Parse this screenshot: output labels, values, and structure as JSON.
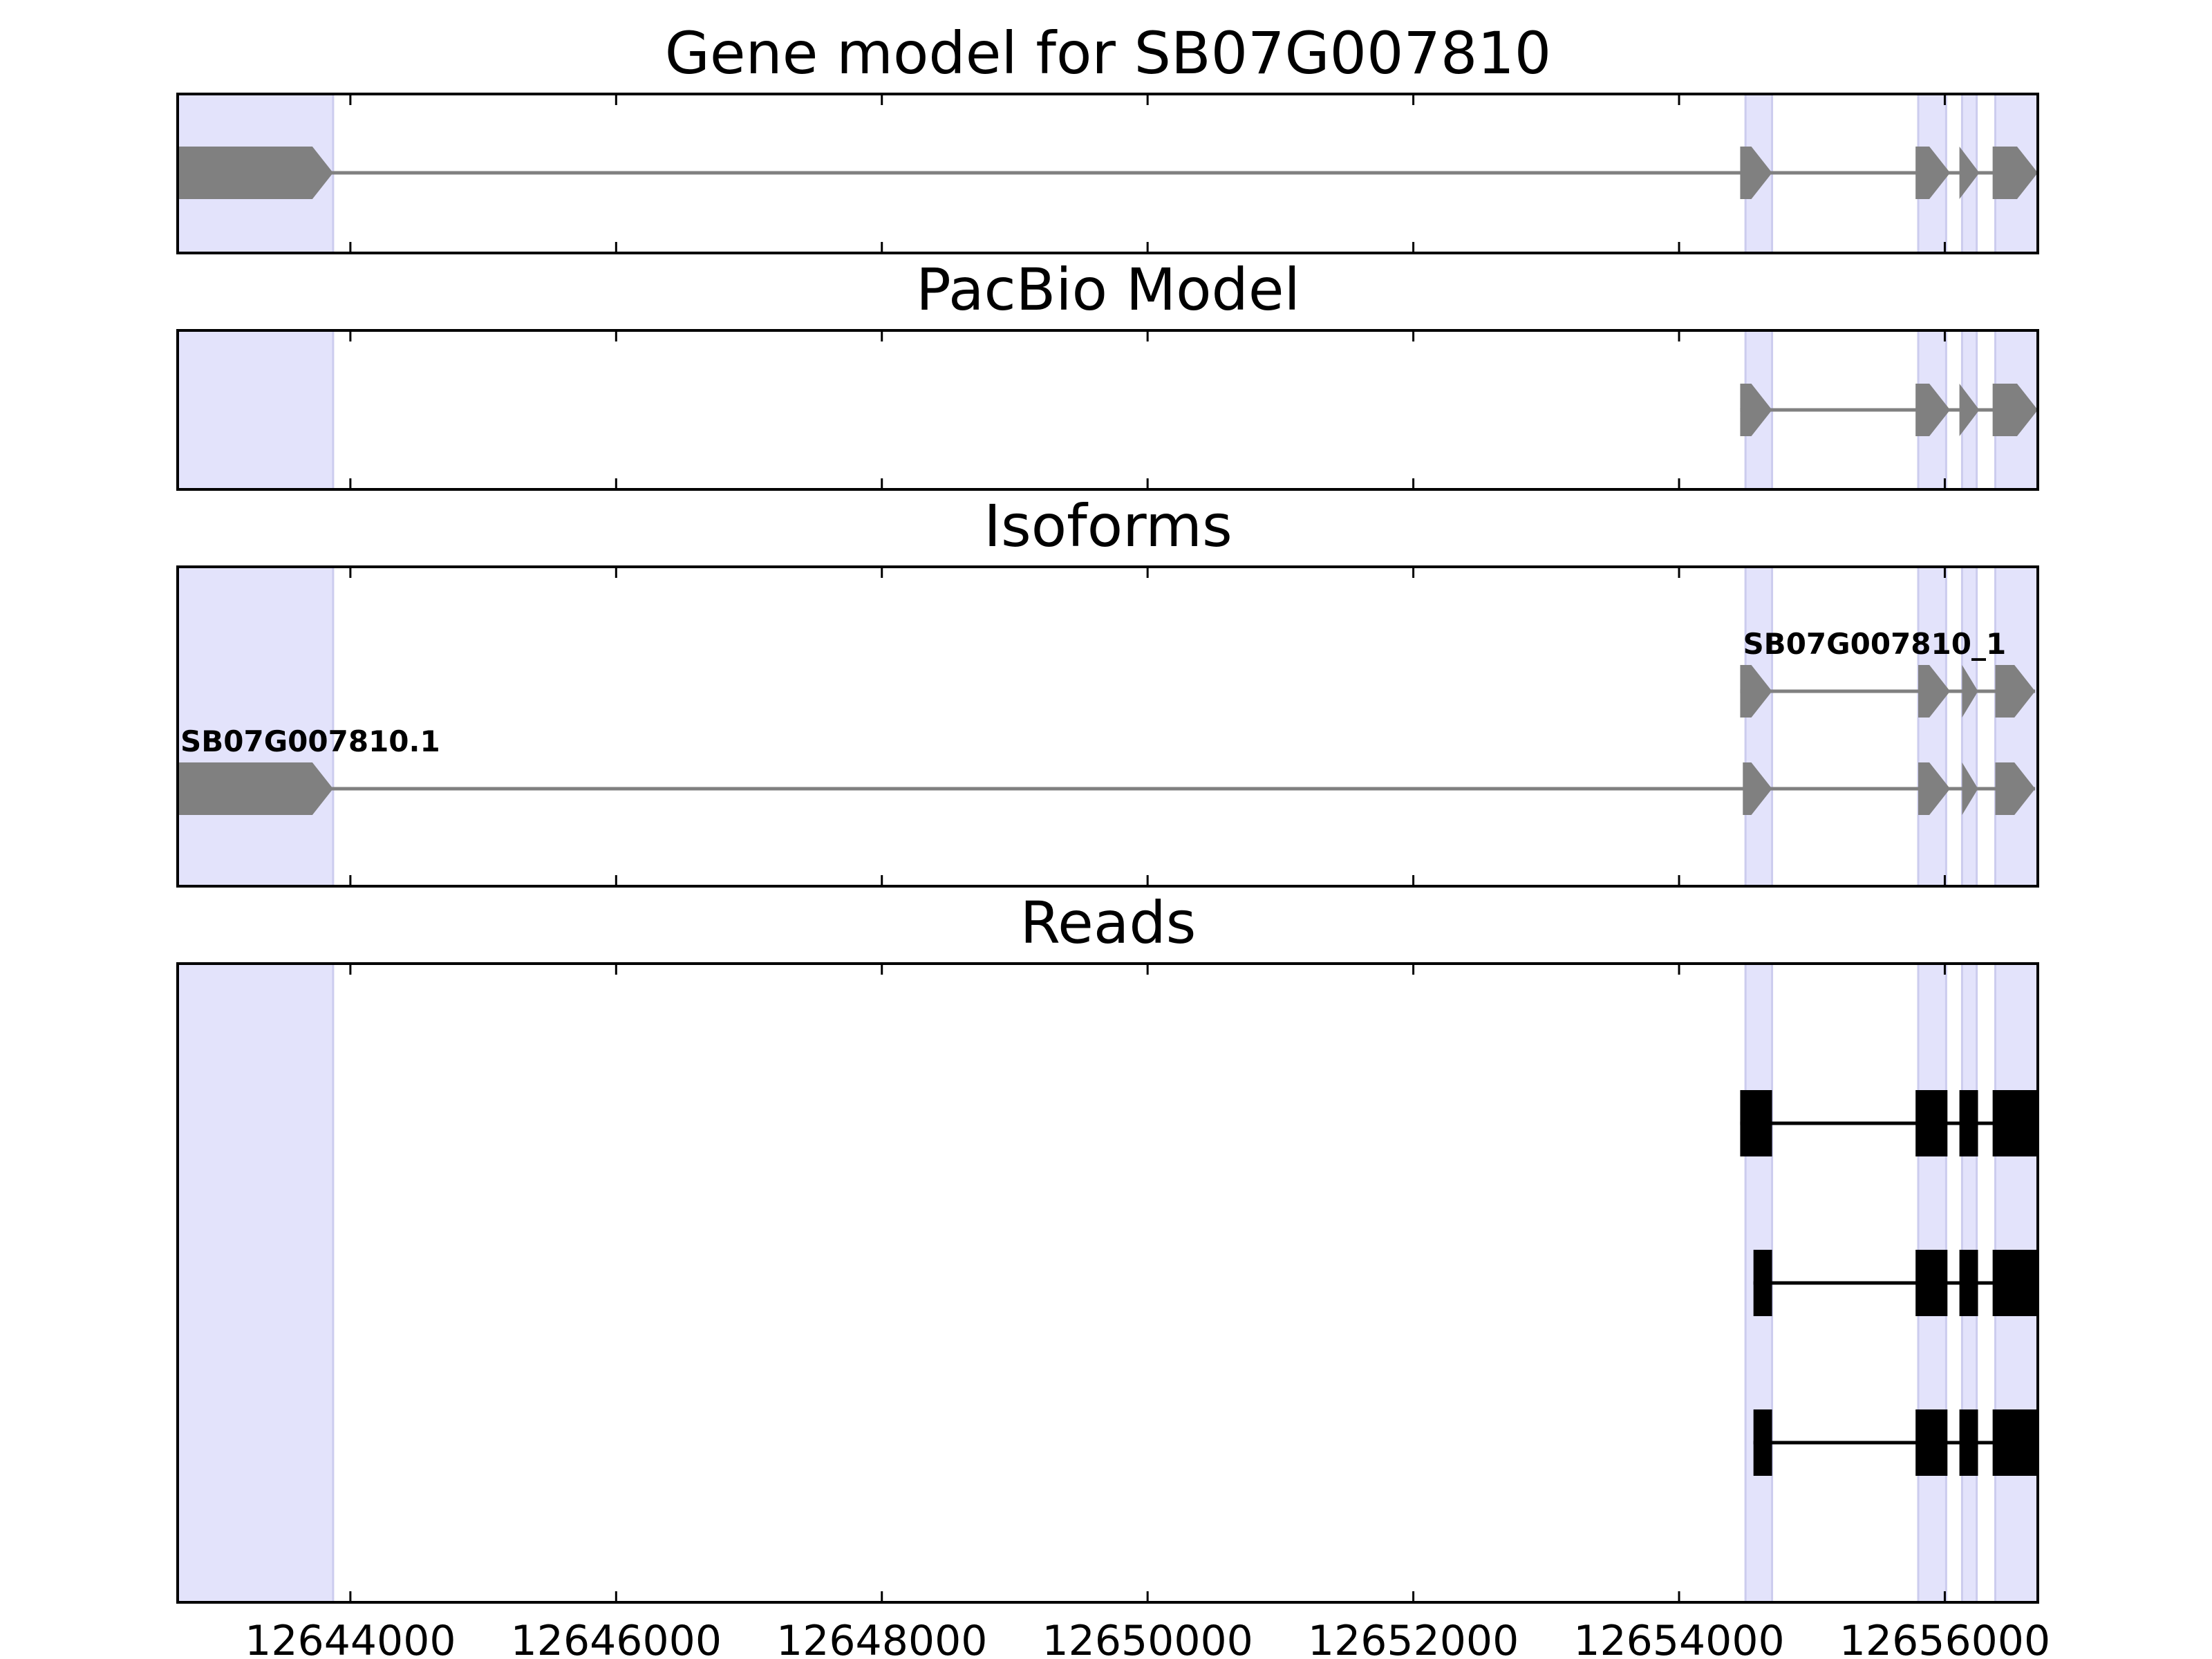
{
  "chart_data": {
    "type": "gene-track",
    "xlim": [
      12642700,
      12656700
    ],
    "x_ticks": [
      {
        "value": 12644000,
        "label": "12644000"
      },
      {
        "value": 12646000,
        "label": "12646000"
      },
      {
        "value": 12648000,
        "label": "12648000"
      },
      {
        "value": 12650000,
        "label": "12650000"
      },
      {
        "value": 12652000,
        "label": "12652000"
      },
      {
        "value": 12654000,
        "label": "12654000"
      },
      {
        "value": 12656000,
        "label": "12656000"
      }
    ],
    "colors": {
      "highlight": "#e3e3fb",
      "highlight_edge": "#ccccee",
      "model": "#808080",
      "read": "#000000",
      "axis": "#000000"
    },
    "highlight_regions": [
      [
        12642700,
        12643870
      ],
      [
        12654500,
        12654700
      ],
      [
        12655800,
        12656010
      ],
      [
        12656130,
        12656240
      ],
      [
        12656380,
        12656700
      ]
    ],
    "panels": [
      {
        "id": "gene-model",
        "title": "Gene model for SB07G007810",
        "kind": "model",
        "tracks": [
          {
            "label": "",
            "exons": [
              [
                12642700,
                12643870
              ],
              [
                12654460,
                12654700
              ],
              [
                12655780,
                12656040
              ],
              [
                12656110,
                12656260
              ],
              [
                12656360,
                12656700
              ]
            ]
          }
        ]
      },
      {
        "id": "pacbio-model",
        "title": "PacBio Model",
        "kind": "model",
        "tracks": [
          {
            "label": "",
            "exons": [
              [
                12654460,
                12654700
              ],
              [
                12655780,
                12656040
              ],
              [
                12656110,
                12656260
              ],
              [
                12656360,
                12656700
              ]
            ]
          }
        ]
      },
      {
        "id": "isoforms",
        "title": "Isoforms",
        "kind": "model",
        "tracks": [
          {
            "label": "SB07G007810_1",
            "exons": [
              [
                12654460,
                12654700
              ],
              [
                12655800,
                12656040
              ],
              [
                12656130,
                12656250
              ],
              [
                12656380,
                12656680
              ]
            ]
          },
          {
            "label": "SB07G007810.1",
            "exons": [
              [
                12642700,
                12643870
              ],
              [
                12654480,
                12654700
              ],
              [
                12655800,
                12656040
              ],
              [
                12656130,
                12656250
              ],
              [
                12656380,
                12656680
              ]
            ]
          }
        ]
      },
      {
        "id": "reads",
        "title": "Reads",
        "kind": "reads",
        "tracks": [
          {
            "label": "",
            "exons": [
              [
                12654460,
                12654700
              ],
              [
                12655780,
                12656020
              ],
              [
                12656110,
                12656250
              ],
              [
                12656360,
                12656690
              ]
            ]
          },
          {
            "label": "",
            "exons": [
              [
                12654560,
                12654700
              ],
              [
                12655780,
                12656020
              ],
              [
                12656110,
                12656250
              ],
              [
                12656360,
                12656700
              ]
            ]
          },
          {
            "label": "",
            "exons": [
              [
                12654560,
                12654700
              ],
              [
                12655780,
                12656020
              ],
              [
                12656110,
                12656250
              ],
              [
                12656360,
                12656700
              ]
            ]
          }
        ]
      }
    ]
  }
}
